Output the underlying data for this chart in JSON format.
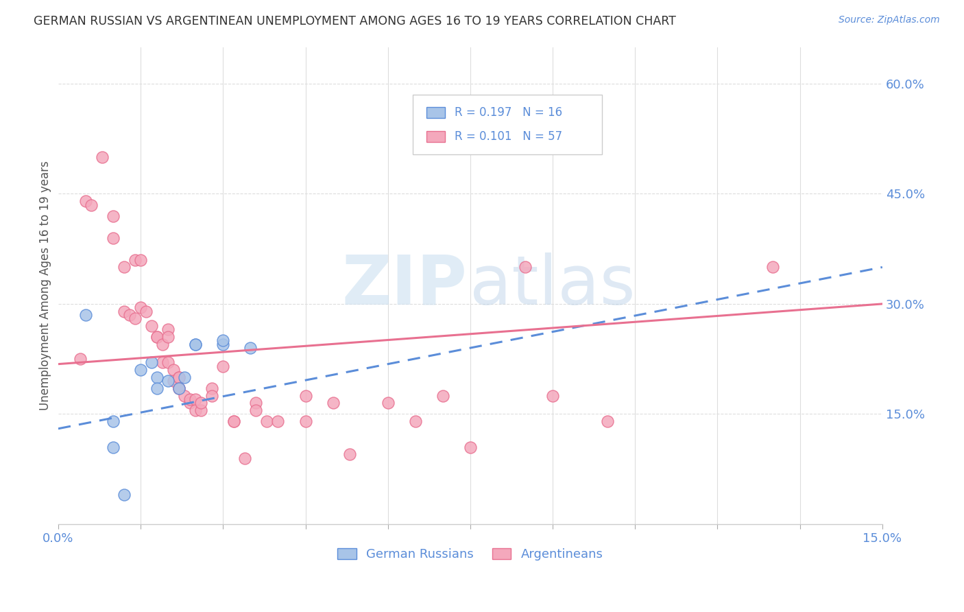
{
  "title": "GERMAN RUSSIAN VS ARGENTINEAN UNEMPLOYMENT AMONG AGES 16 TO 19 YEARS CORRELATION CHART",
  "source": "Source: ZipAtlas.com",
  "ylabel": "Unemployment Among Ages 16 to 19 years",
  "legend_blue_r": "R = 0.197",
  "legend_blue_n": "N = 16",
  "legend_pink_r": "R = 0.101",
  "legend_pink_n": "N = 57",
  "legend_label_blue": "German Russians",
  "legend_label_pink": "Argentineans",
  "blue_color": "#a8c4e8",
  "pink_color": "#f4a8bc",
  "blue_line_color": "#5b8dd9",
  "pink_line_color": "#e87090",
  "blue_points": [
    [
      0.005,
      0.285
    ],
    [
      0.01,
      0.14
    ],
    [
      0.01,
      0.105
    ],
    [
      0.012,
      0.04
    ],
    [
      0.015,
      0.21
    ],
    [
      0.017,
      0.22
    ],
    [
      0.018,
      0.2
    ],
    [
      0.018,
      0.185
    ],
    [
      0.02,
      0.195
    ],
    [
      0.022,
      0.185
    ],
    [
      0.023,
      0.2
    ],
    [
      0.025,
      0.245
    ],
    [
      0.025,
      0.245
    ],
    [
      0.03,
      0.245
    ],
    [
      0.03,
      0.25
    ],
    [
      0.035,
      0.24
    ]
  ],
  "pink_points": [
    [
      0.004,
      0.225
    ],
    [
      0.005,
      0.44
    ],
    [
      0.006,
      0.435
    ],
    [
      0.008,
      0.5
    ],
    [
      0.01,
      0.42
    ],
    [
      0.01,
      0.39
    ],
    [
      0.012,
      0.35
    ],
    [
      0.012,
      0.29
    ],
    [
      0.013,
      0.285
    ],
    [
      0.014,
      0.28
    ],
    [
      0.014,
      0.36
    ],
    [
      0.015,
      0.36
    ],
    [
      0.015,
      0.295
    ],
    [
      0.016,
      0.29
    ],
    [
      0.017,
      0.27
    ],
    [
      0.018,
      0.255
    ],
    [
      0.018,
      0.255
    ],
    [
      0.019,
      0.245
    ],
    [
      0.019,
      0.22
    ],
    [
      0.02,
      0.22
    ],
    [
      0.02,
      0.265
    ],
    [
      0.02,
      0.255
    ],
    [
      0.021,
      0.21
    ],
    [
      0.021,
      0.195
    ],
    [
      0.022,
      0.2
    ],
    [
      0.022,
      0.2
    ],
    [
      0.022,
      0.185
    ],
    [
      0.022,
      0.185
    ],
    [
      0.023,
      0.175
    ],
    [
      0.024,
      0.165
    ],
    [
      0.024,
      0.17
    ],
    [
      0.025,
      0.17
    ],
    [
      0.025,
      0.155
    ],
    [
      0.026,
      0.155
    ],
    [
      0.026,
      0.165
    ],
    [
      0.028,
      0.185
    ],
    [
      0.028,
      0.175
    ],
    [
      0.03,
      0.215
    ],
    [
      0.032,
      0.14
    ],
    [
      0.032,
      0.14
    ],
    [
      0.034,
      0.09
    ],
    [
      0.036,
      0.165
    ],
    [
      0.036,
      0.155
    ],
    [
      0.038,
      0.14
    ],
    [
      0.04,
      0.14
    ],
    [
      0.045,
      0.175
    ],
    [
      0.045,
      0.14
    ],
    [
      0.05,
      0.165
    ],
    [
      0.053,
      0.095
    ],
    [
      0.06,
      0.165
    ],
    [
      0.065,
      0.14
    ],
    [
      0.07,
      0.175
    ],
    [
      0.075,
      0.105
    ],
    [
      0.085,
      0.35
    ],
    [
      0.09,
      0.175
    ],
    [
      0.1,
      0.14
    ],
    [
      0.13,
      0.35
    ]
  ],
  "xlim": [
    0.0,
    0.15
  ],
  "ylim": [
    0.0,
    0.65
  ]
}
